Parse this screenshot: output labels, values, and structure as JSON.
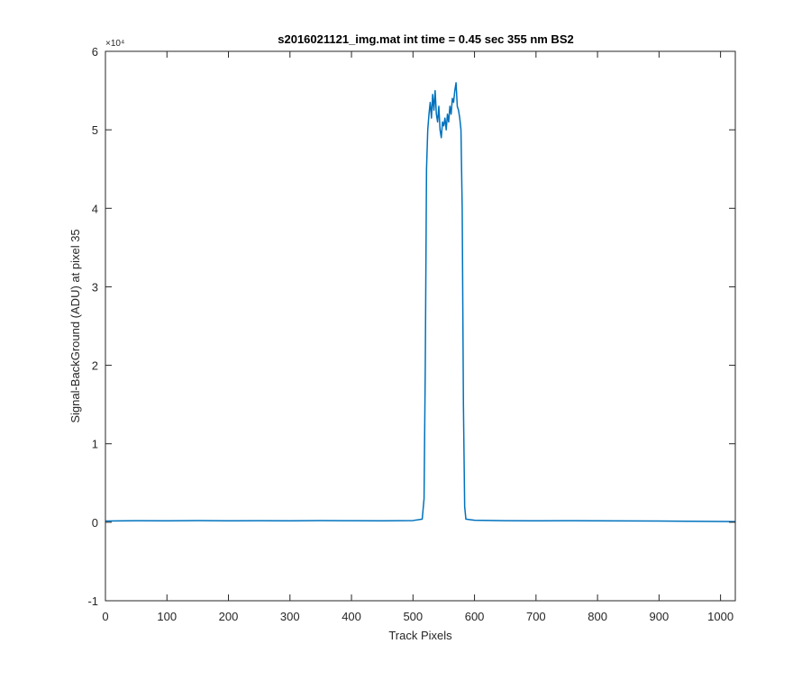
{
  "chart_data": {
    "type": "line",
    "title": "s2016021121_img.mat int time = 0.45 sec  355 nm BS2",
    "xlabel": "Track Pixels",
    "ylabel": "Signal-BackGround (ADU) at pixel 35",
    "xlim": [
      0,
      1024
    ],
    "ylim": [
      -10000,
      60000
    ],
    "x_ticks": [
      0,
      100,
      200,
      300,
      400,
      500,
      600,
      700,
      800,
      900,
      1000
    ],
    "y_ticks": [
      -10000,
      0,
      10000,
      20000,
      30000,
      40000,
      50000,
      60000
    ],
    "x_tick_labels": [
      "0",
      "100",
      "200",
      "300",
      "400",
      "500",
      "600",
      "700",
      "800",
      "900",
      "1000"
    ],
    "y_tick_labels": [
      "-1",
      "0",
      "1",
      "2",
      "3",
      "4",
      "5",
      "6"
    ],
    "y_exponent_label": "×10⁴",
    "grid": false,
    "box": true,
    "series": [
      {
        "color": "#0072BD",
        "x": [
          0,
          50,
          100,
          150,
          200,
          250,
          300,
          350,
          400,
          450,
          500,
          515,
          518,
          520,
          522,
          524,
          526,
          528,
          530,
          532,
          534,
          536,
          538,
          540,
          542,
          544,
          546,
          548,
          550,
          552,
          554,
          556,
          558,
          560,
          562,
          564,
          566,
          568,
          570,
          572,
          574,
          576,
          578,
          580,
          582,
          584,
          586,
          600,
          650,
          700,
          750,
          800,
          850,
          900,
          950,
          1000,
          1024
        ],
        "y": [
          150,
          200,
          180,
          210,
          190,
          200,
          180,
          210,
          200,
          190,
          220,
          400,
          3000,
          20000,
          45000,
          50000,
          52000,
          53500,
          51500,
          54500,
          52500,
          55000,
          52000,
          51000,
          53000,
          50000,
          49000,
          51000,
          50500,
          51500,
          50000,
          52000,
          51000,
          53000,
          52000,
          54000,
          53500,
          55000,
          56000,
          53000,
          52500,
          51500,
          50000,
          40000,
          15000,
          2000,
          400,
          250,
          200,
          190,
          200,
          180,
          170,
          150,
          120,
          100,
          80
        ]
      }
    ]
  }
}
